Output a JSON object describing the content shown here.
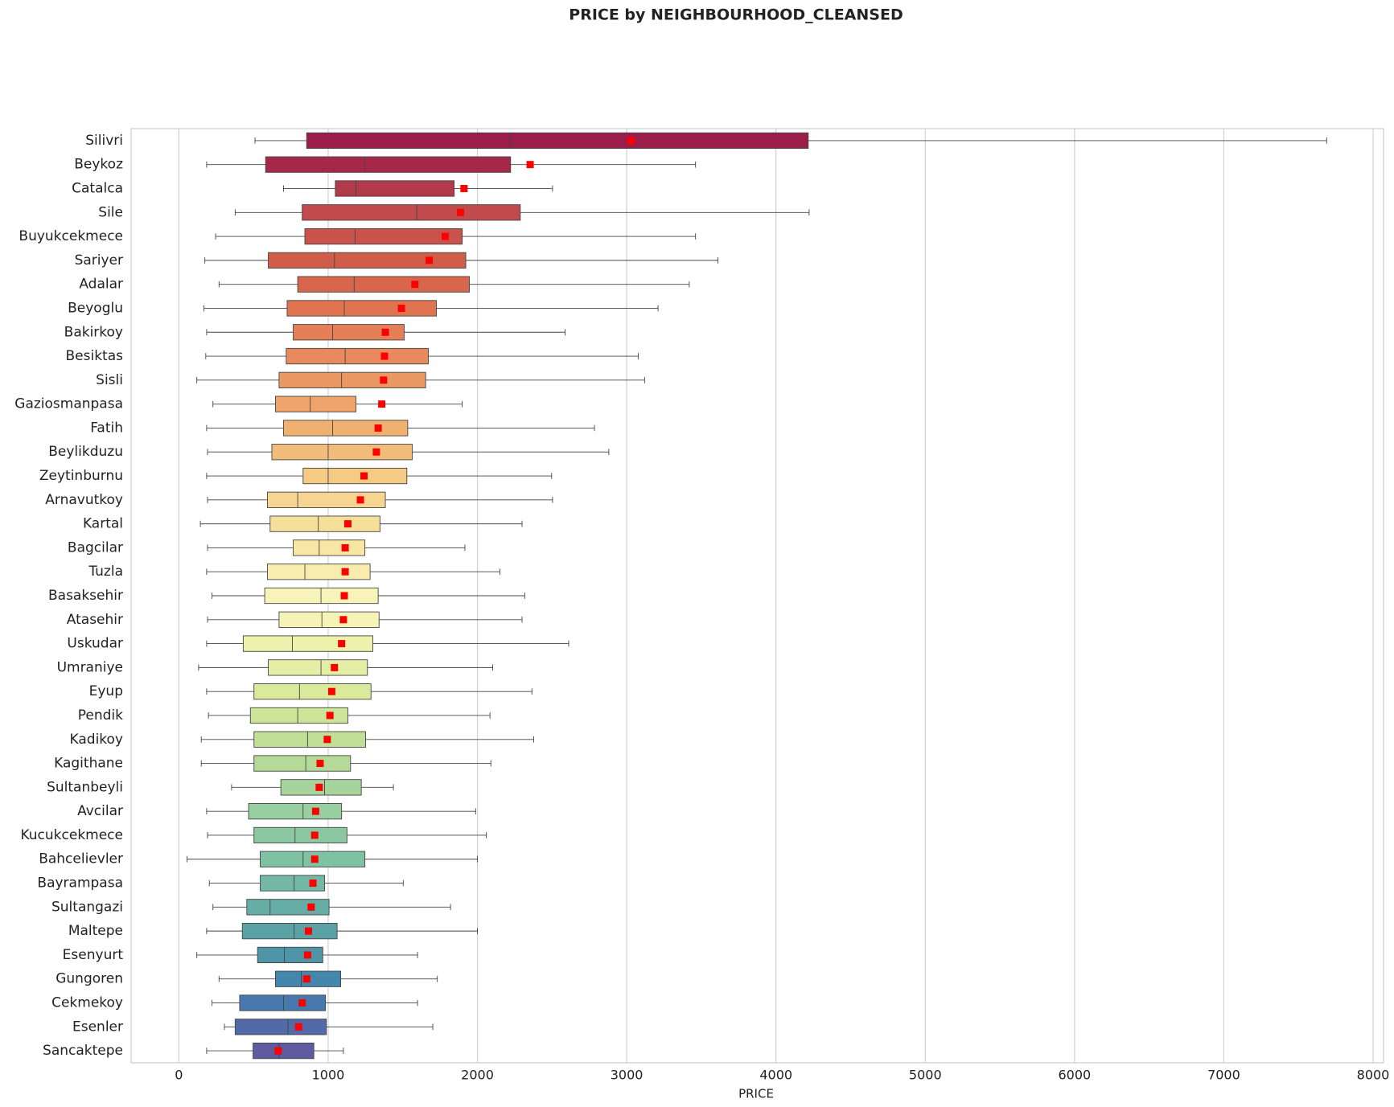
{
  "chart_data": {
    "type": "box",
    "title": "PRICE by NEIGHBOURHOOD_CLEANSED",
    "xlabel": "PRICE",
    "categories": [
      "Silivri",
      "Beykoz",
      "Catalca",
      "Sile",
      "Buyukcekmece",
      "Sariyer",
      "Adalar",
      "Beyoglu",
      "Bakirkoy",
      "Besiktas",
      "Sisli",
      "Gaziosmanpasa",
      "Fatih",
      "Beylikduzu",
      "Zeytinburnu",
      "Arnavutkoy",
      "Kartal",
      "Bagcilar",
      "Tuzla",
      "Basaksehir",
      "Atasehir",
      "Uskudar",
      "Umraniye",
      "Eyup",
      "Pendik",
      "Kadikoy",
      "Kagithane",
      "Sultanbeyli",
      "Avcilar",
      "Kucukcekmece",
      "Bahcelievler",
      "Bayrampasa",
      "Sultangazi",
      "Maltepe",
      "Esenyurt",
      "Gungoren",
      "Cekmekoy",
      "Esenler",
      "Sancaktepe"
    ],
    "whislo": [
      510,
      186,
      701,
      377,
      246,
      174,
      269,
      168,
      186,
      180,
      120,
      228,
      186,
      192,
      186,
      192,
      144,
      192,
      186,
      222,
      192,
      186,
      132,
      186,
      198,
      150,
      150,
      353,
      186,
      192,
      54,
      204,
      228,
      186,
      120,
      269,
      222,
      305,
      186
    ],
    "q1": [
      856,
      581,
      1048,
      826,
      844,
      599,
      796,
      725,
      766,
      719,
      671,
      647,
      701,
      623,
      832,
      593,
      611,
      766,
      593,
      575,
      671,
      431,
      599,
      503,
      479,
      503,
      503,
      683,
      467,
      503,
      545,
      545,
      455,
      425,
      527,
      647,
      407,
      377,
      497
    ],
    "med": [
      2222,
      1246,
      1186,
      1593,
      1180,
      1042,
      1174,
      1108,
      1030,
      1114,
      1090,
      880,
      1030,
      1000,
      1000,
      796,
      934,
      940,
      844,
      952,
      958,
      760,
      952,
      808,
      796,
      862,
      850,
      976,
      832,
      778,
      832,
      772,
      611,
      772,
      707,
      820,
      701,
      731,
      671
    ],
    "q3": [
      4216,
      2222,
      1844,
      2287,
      1898,
      1922,
      1946,
      1725,
      1509,
      1671,
      1653,
      1186,
      1533,
      1563,
      1527,
      1383,
      1347,
      1246,
      1281,
      1335,
      1341,
      1299,
      1263,
      1287,
      1132,
      1251,
      1150,
      1222,
      1090,
      1126,
      1246,
      976,
      1006,
      1060,
      964,
      1084,
      982,
      988,
      904
    ],
    "whishi": [
      7689,
      3461,
      2503,
      4222,
      3461,
      3611,
      3419,
      3210,
      2587,
      3078,
      3120,
      1898,
      2784,
      2880,
      2497,
      2503,
      2299,
      1916,
      2150,
      2317,
      2299,
      2611,
      2102,
      2365,
      2084,
      2377,
      2090,
      1437,
      1988,
      2060,
      2000,
      1503,
      1820,
      2000,
      1599,
      1731,
      1599,
      1701,
      1102
    ],
    "mean": [
      3030,
      2353,
      1910,
      1886,
      1784,
      1677,
      1581,
      1491,
      1383,
      1377,
      1371,
      1359,
      1335,
      1323,
      1240,
      1216,
      1132,
      1114,
      1114,
      1108,
      1102,
      1090,
      1042,
      1024,
      1012,
      994,
      946,
      940,
      916,
      910,
      910,
      898,
      886,
      868,
      862,
      856,
      826,
      802,
      665
    ],
    "colors": [
      "#9b1d4a",
      "#a62849",
      "#b33a4a",
      "#c04a4c",
      "#c9534c",
      "#d05c4a",
      "#d8664c",
      "#e07450",
      "#e47f58",
      "#e88a5e",
      "#eb9964",
      "#eea46a",
      "#f0b070",
      "#f2bd7a",
      "#f4ca85",
      "#f5d590",
      "#f6df9a",
      "#f7e6a4",
      "#f8edaf",
      "#f8f3b8",
      "#f5f4b6",
      "#ecf1ac",
      "#e4eea4",
      "#dae99c",
      "#cde598",
      "#c1df97",
      "#b5da98",
      "#a7d49c",
      "#98cea0",
      "#8bc8a2",
      "#7fc1a3",
      "#72b8a4",
      "#66aea5",
      "#5aa2a5",
      "#4e95a8",
      "#4487ad",
      "#4779af",
      "#526aa7",
      "#5e5ba0"
    ],
    "mean_color": "#ff0000",
    "xlim": [
      -320,
      8070
    ],
    "xticks": [
      0,
      1000,
      2000,
      3000,
      4000,
      5000,
      6000,
      7000,
      8000
    ],
    "grid": true
  }
}
